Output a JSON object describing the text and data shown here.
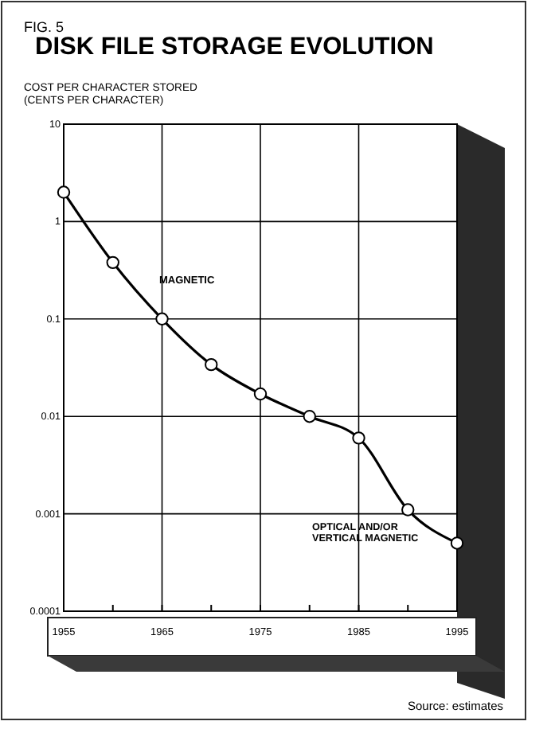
{
  "chart_data": {
    "type": "line",
    "title": "DISK FILE STORAGE EVOLUTION",
    "ylabel": "COST PER CHARACTER STORED\n(CENTS PER CHARACTER)",
    "x": [
      1955,
      1960,
      1965,
      1970,
      1975,
      1980,
      1985,
      1990,
      1995
    ],
    "series": [
      {
        "color": "#000000",
        "values": [
          2,
          0.38,
          0.1,
          0.034,
          0.017,
          0.01,
          0.006,
          0.0011,
          0.0005
        ]
      }
    ],
    "xlim": [
      1955,
      1995
    ],
    "xticks": [
      1955,
      {
        "value": 1960,
        "label": null
      },
      1965,
      {
        "value": 1970,
        "label": null
      },
      1975,
      {
        "value": 1980,
        "label": null
      },
      1985,
      {
        "value": 1990,
        "label": null
      },
      1995
    ],
    "ylim": [
      0.0001,
      10
    ],
    "yticks": [
      0.0001,
      0.001,
      0.01,
      0.1,
      1,
      10
    ],
    "log": "y",
    "grid": true,
    "marker": "circle",
    "line_style": "solid",
    "annotations": [
      "FIG. 5",
      "MAGNETIC",
      "OPTICAL AND/OR\nVERTICAL MAGNETIC",
      "Source: estimates"
    ]
  }
}
